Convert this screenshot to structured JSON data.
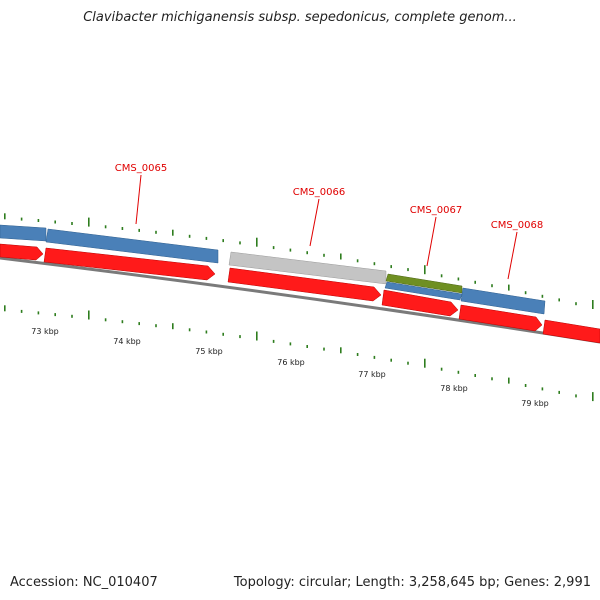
{
  "title": "Clavibacter michiganensis subsp. sepedonicus, complete genom...",
  "footer": {
    "accession": "Accession: NC_010407",
    "summary": "Topology: circular; Length: 3,258,645 bp; Genes: 2,991"
  },
  "colors": {
    "forward_cds": "#ff1a1a",
    "reverse_cds": "#4a80b8",
    "grey_feature": "#c4c4c4",
    "green_feature": "#6f8f22",
    "backbone": "#7a7a7a",
    "tick": "#2e7d1e",
    "label": "#e00000"
  },
  "genes": [
    {
      "name": "CMS_0065"
    },
    {
      "name": "CMS_0066"
    },
    {
      "name": "CMS_0067"
    },
    {
      "name": "CMS_0068"
    }
  ],
  "kbp_labels": [
    "73 kbp",
    "74 kbp",
    "75 kbp",
    "76 kbp",
    "77 kbp",
    "78 kbp",
    "79 kbp"
  ]
}
